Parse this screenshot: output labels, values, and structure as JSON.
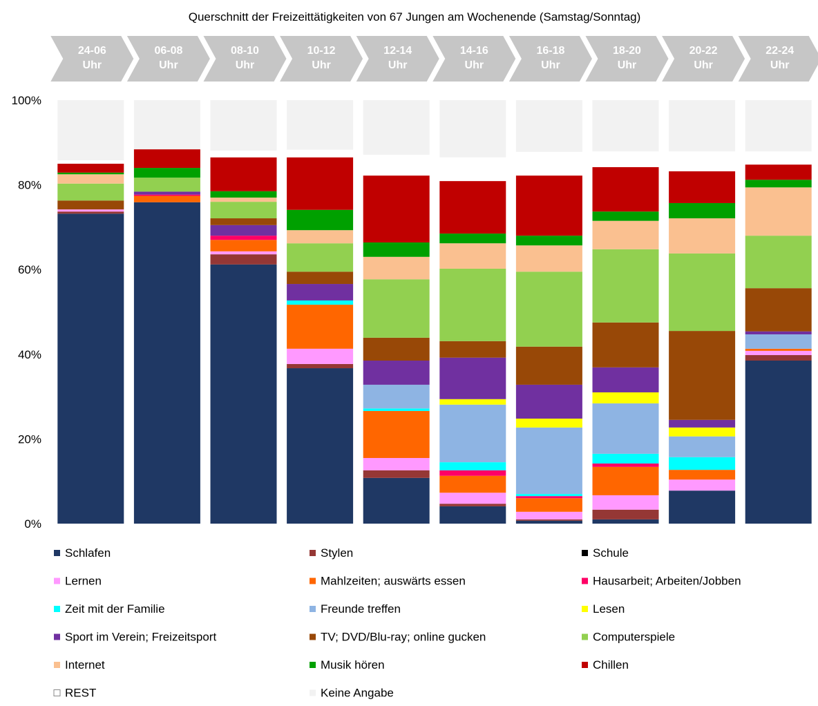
{
  "chart_data": {
    "type": "stacked_bar",
    "title": "Querschnitt der Freizeittätigkeiten von 67 Jungen am Wochenende (Samstag/Sonntag)",
    "categories": [
      "24-06 Uhr",
      "06-08 Uhr",
      "08-10 Uhr",
      "10-12 Uhr",
      "12-14 Uhr",
      "14-16 Uhr",
      "16-18 Uhr",
      "18-20 Uhr",
      "20-22 Uhr",
      "22-24 Uhr"
    ],
    "ylim": [
      0,
      100
    ],
    "yticks": [
      {
        "value": 0,
        "label": "0%"
      },
      {
        "value": 20,
        "label": "20%"
      },
      {
        "value": 40,
        "label": "40%"
      },
      {
        "value": 60,
        "label": "60%"
      },
      {
        "value": 80,
        "label": "80%"
      },
      {
        "value": 100,
        "label": "100%"
      }
    ],
    "grid": false,
    "legend": "bottom",
    "series": [
      {
        "name": "Schlafen",
        "color": "#1f3864",
        "values": [
          73.2,
          75.9,
          61.2,
          36.7,
          10.8,
          4.1,
          0.7,
          1.0,
          7.8,
          38.5
        ]
      },
      {
        "name": "Stylen",
        "color": "#953735",
        "values": [
          0.5,
          0,
          2.4,
          1.0,
          1.8,
          0.6,
          0.3,
          2.3,
          0,
          1.3
        ]
      },
      {
        "name": "Schule",
        "color": "#000000",
        "values": [
          0,
          0,
          0,
          0,
          0,
          0,
          0,
          0,
          0,
          0
        ]
      },
      {
        "name": "Lernen",
        "color": "#ff99ff",
        "values": [
          0.5,
          0,
          0.7,
          3.6,
          2.9,
          2.6,
          1.8,
          3.4,
          2.6,
          1.0
        ]
      },
      {
        "name": "Mahlzeiten; auswärts essen",
        "color": "#ff6600",
        "values": [
          0,
          1.5,
          2.7,
          10.4,
          11.1,
          4.0,
          3.2,
          6.7,
          2.3,
          0.5
        ]
      },
      {
        "name": "Hausarbeit; Arbeiten/Jobben",
        "color": "#ff0066",
        "values": [
          0,
          0.3,
          1.0,
          0,
          0,
          1.3,
          0.5,
          0.8,
          0,
          0
        ]
      },
      {
        "name": "Zeit mit der Familie",
        "color": "#00ffff",
        "values": [
          0,
          0,
          0,
          1.0,
          0.6,
          1.9,
          0.5,
          2.3,
          3.0,
          0
        ]
      },
      {
        "name": "Freunde treffen",
        "color": "#8eb4e3",
        "values": [
          0,
          0,
          0,
          0,
          5.6,
          13.6,
          15.7,
          11.9,
          4.9,
          3.4
        ]
      },
      {
        "name": "Lesen",
        "color": "#ffff00",
        "values": [
          0,
          0,
          0,
          0,
          0,
          1.3,
          2.1,
          2.6,
          2.1,
          0
        ]
      },
      {
        "name": "Sport im Verein; Freizeitsport",
        "color": "#7030a0",
        "values": [
          0,
          0.7,
          2.5,
          3.9,
          5.7,
          9.8,
          8.0,
          5.9,
          1.8,
          0.7
        ]
      },
      {
        "name": "TV; DVD/Blu-ray; online gucken",
        "color": "#984807",
        "values": [
          2.1,
          0,
          1.6,
          2.9,
          5.4,
          3.9,
          9.0,
          10.6,
          21.0,
          10.2
        ]
      },
      {
        "name": "Computerspiele",
        "color": "#92d050",
        "values": [
          4.0,
          3.3,
          3.9,
          6.7,
          13.8,
          17.1,
          17.7,
          17.3,
          18.3,
          12.4
        ]
      },
      {
        "name": "Internet",
        "color": "#fac090",
        "values": [
          2.2,
          0,
          1.0,
          3.1,
          5.3,
          6.0,
          6.2,
          6.7,
          8.3,
          11.4
        ]
      },
      {
        "name": "Musik hören",
        "color": "#00a000",
        "values": [
          0.4,
          2.3,
          1.5,
          4.8,
          3.4,
          2.3,
          2.3,
          2.2,
          3.6,
          1.8
        ]
      },
      {
        "name": "Chillen",
        "color": "#c00000",
        "values": [
          2.1,
          4.4,
          8.0,
          12.4,
          15.8,
          12.4,
          14.2,
          10.5,
          7.5,
          3.6
        ]
      },
      {
        "name": "REST",
        "color": "#ffffff",
        "values": [
          0.8,
          0,
          1.6,
          1.8,
          4.9,
          5.6,
          5.6,
          3.7,
          4.7,
          3.1
        ]
      },
      {
        "name": "Keine Angabe",
        "color": "#f2f2f2",
        "values": [
          14.2,
          11.6,
          11.9,
          11.7,
          12.9,
          13.5,
          12.2,
          12.1,
          12.1,
          12.1
        ]
      }
    ]
  }
}
